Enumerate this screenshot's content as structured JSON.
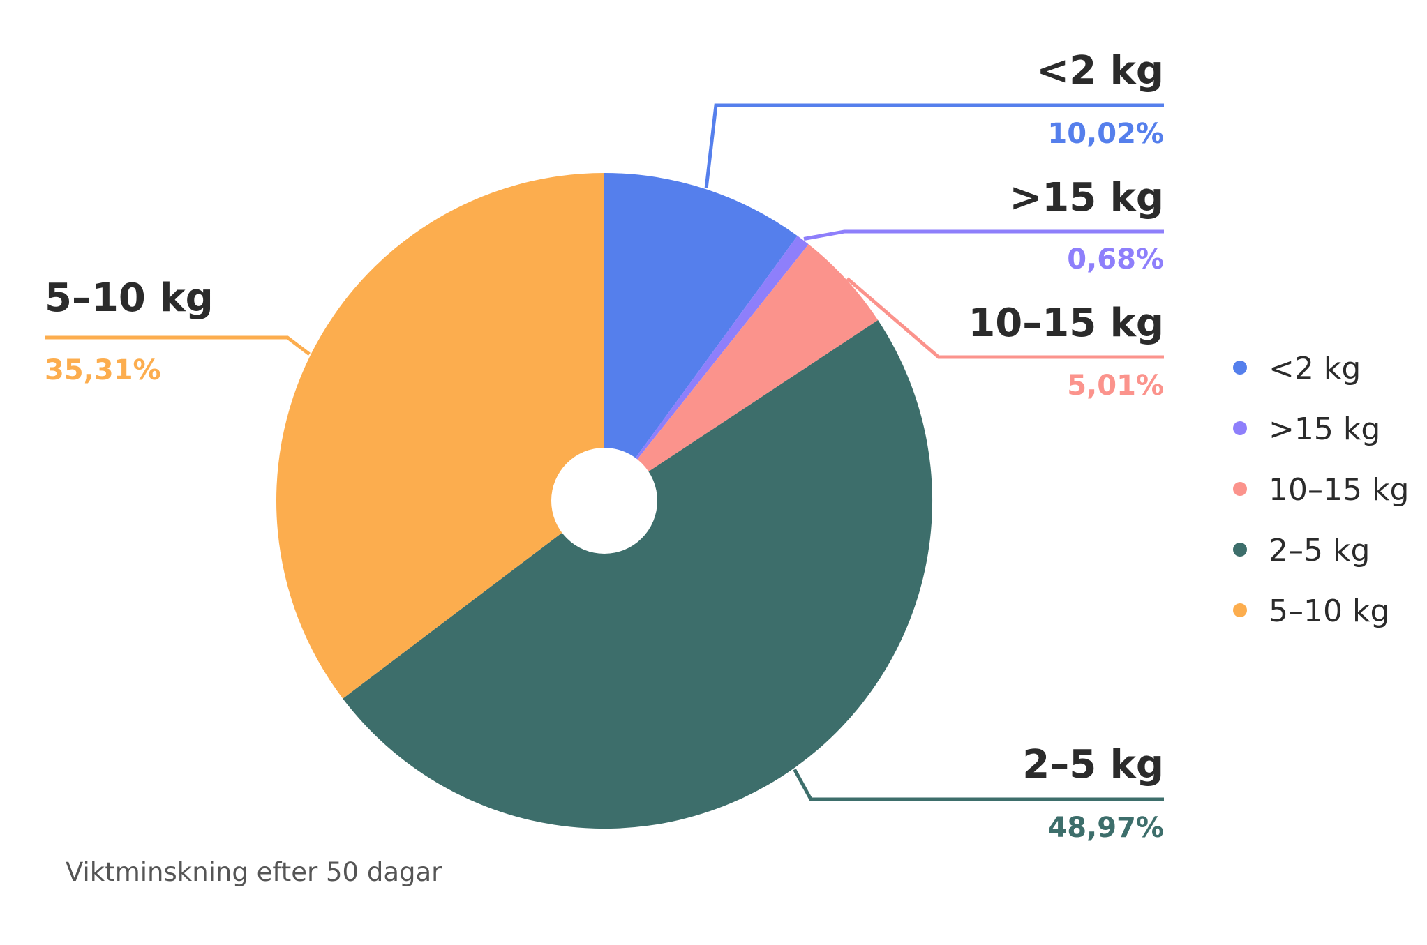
{
  "chart_data": {
    "type": "pie",
    "caption": "Viktminskning efter 50 dagar",
    "slices": [
      {
        "label": "<2 kg",
        "value": 10.02,
        "value_label": "10,02%",
        "color": "#557fec"
      },
      {
        "label": ">15 kg",
        "value": 0.68,
        "value_label": "0,68%",
        "color": "#8e7ffb"
      },
      {
        "label": "10–15 kg",
        "value": 5.01,
        "value_label": "5,01%",
        "color": "#fb938c"
      },
      {
        "label": "2–5 kg",
        "value": 48.97,
        "value_label": "48,97%",
        "color": "#3d6e6b"
      },
      {
        "label": "5–10 kg",
        "value": 35.31,
        "value_label": "35,31%",
        "color": "#fcad4e"
      }
    ],
    "legend": [
      "<2 kg",
      ">15 kg",
      "10–15 kg",
      "2–5 kg",
      "5–10 kg"
    ],
    "legend_position": "right",
    "donut_hole": true
  }
}
